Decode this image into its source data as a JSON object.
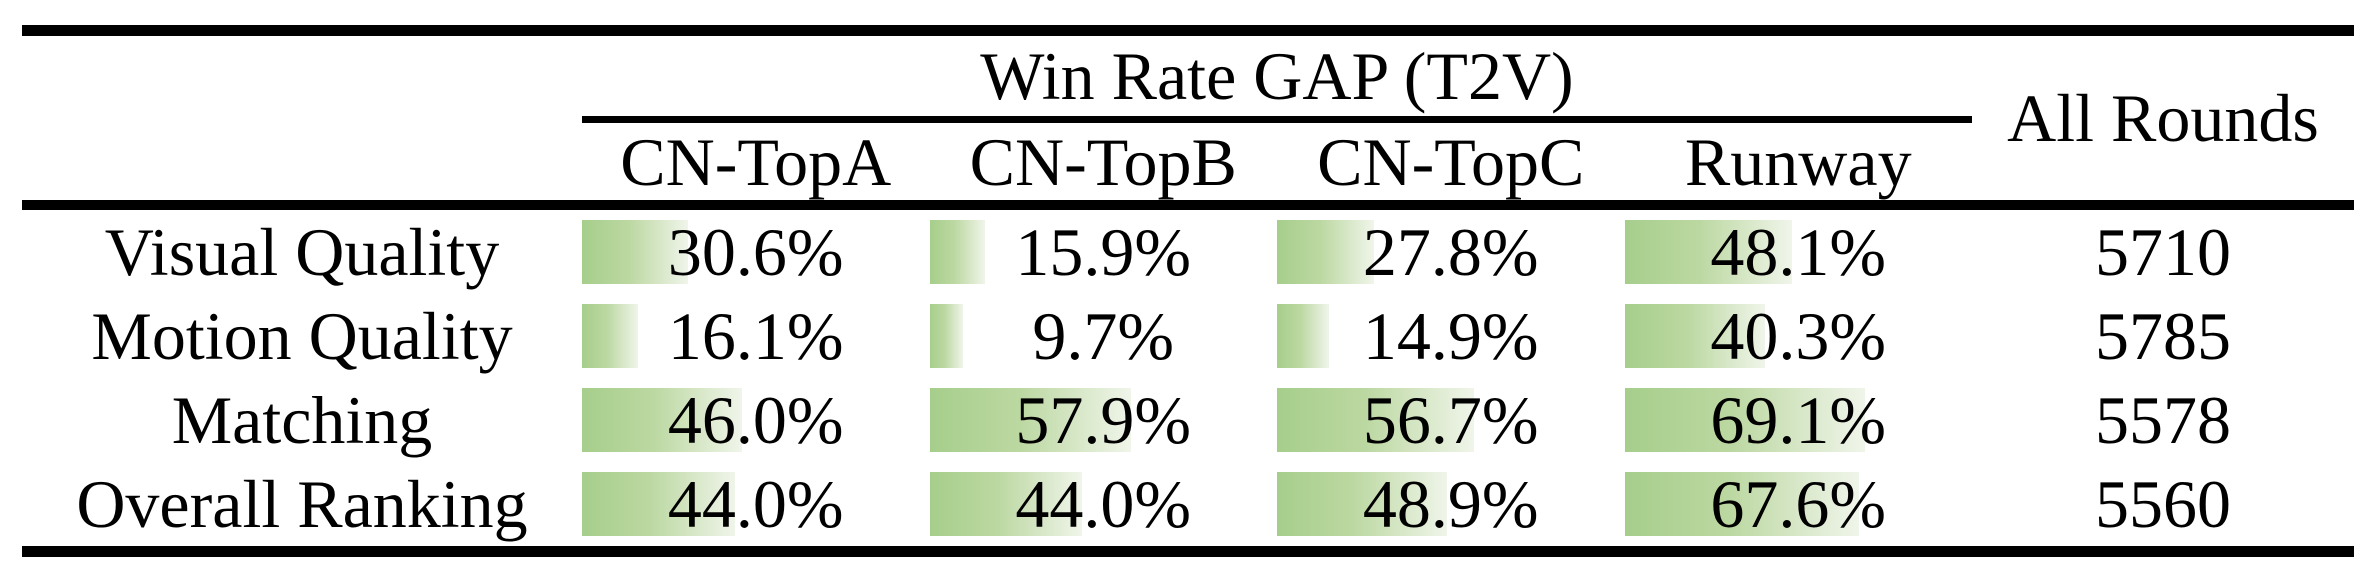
{
  "table": {
    "group_header": "Win Rate GAP (T2V)",
    "all_rounds_header": "All Rounds",
    "columns": [
      "CN-TopA",
      "CN-TopB",
      "CN-TopC",
      "Runway"
    ],
    "rows": [
      {
        "label": "Visual Quality",
        "cells": [
          {
            "text": "30.6%",
            "pct": 30.6
          },
          {
            "text": "15.9%",
            "pct": 15.9
          },
          {
            "text": "27.8%",
            "pct": 27.8
          },
          {
            "text": "48.1%",
            "pct": 48.1
          }
        ],
        "all_rounds": "5710"
      },
      {
        "label": "Motion Quality",
        "cells": [
          {
            "text": "16.1%",
            "pct": 16.1
          },
          {
            "text": "9.7%",
            "pct": 9.7
          },
          {
            "text": "14.9%",
            "pct": 14.9
          },
          {
            "text": "40.3%",
            "pct": 40.3
          }
        ],
        "all_rounds": "5785"
      },
      {
        "label": "Matching",
        "cells": [
          {
            "text": "46.0%",
            "pct": 46.0
          },
          {
            "text": "57.9%",
            "pct": 57.9
          },
          {
            "text": "56.7%",
            "pct": 56.7
          },
          {
            "text": "69.1%",
            "pct": 69.1
          }
        ],
        "all_rounds": "5578"
      },
      {
        "label": "Overall Ranking",
        "cells": [
          {
            "text": "44.0%",
            "pct": 44.0
          },
          {
            "text": "44.0%",
            "pct": 44.0
          },
          {
            "text": "48.9%",
            "pct": 48.9
          },
          {
            "text": "67.6%",
            "pct": 67.6
          }
        ],
        "all_rounds": "5560"
      }
    ]
  },
  "colors": {
    "bar_start": "#a6ce8b",
    "bar_mid": "#bcd8a2",
    "bar_end": "#f0f5ea",
    "rule_color": "#000000",
    "text_color": "#000000",
    "bg_color": "#ffffff"
  },
  "chart_data": {
    "type": "table",
    "title": "Win Rate GAP (T2V)",
    "columns": [
      "",
      "CN-TopA",
      "CN-TopB",
      "CN-TopC",
      "Runway",
      "All Rounds"
    ],
    "rows": [
      [
        "Visual Quality",
        30.6,
        15.9,
        27.8,
        48.1,
        5710
      ],
      [
        "Motion Quality",
        16.1,
        9.7,
        14.9,
        40.3,
        5785
      ],
      [
        "Matching",
        46.0,
        57.9,
        56.7,
        69.1,
        5578
      ],
      [
        "Overall Ranking",
        44.0,
        44.0,
        48.9,
        67.6,
        5560
      ]
    ],
    "value_unit": "%",
    "bar_scale_note": "green data bars scaled 0-100% of column width"
  }
}
